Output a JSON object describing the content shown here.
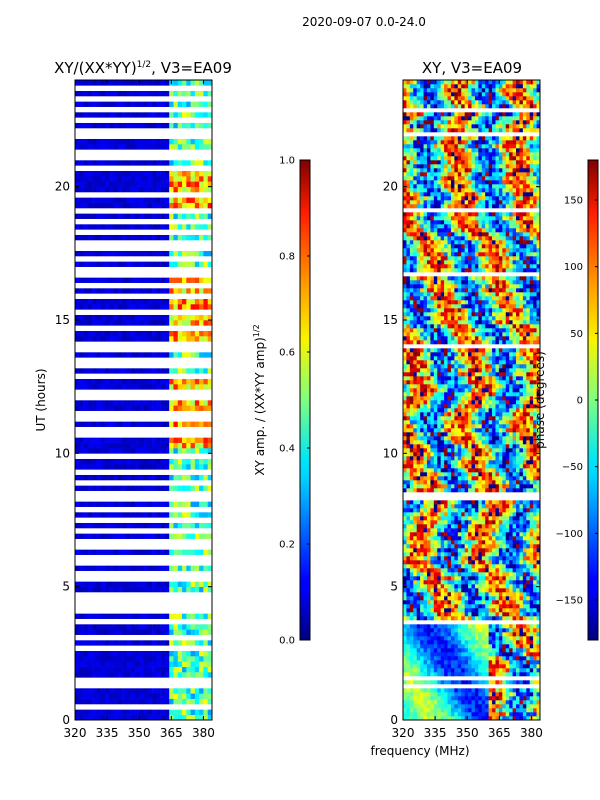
{
  "figure": {
    "suptitle": "2020-09-07 0.0-24.0",
    "shared_xlabel": "frequency (MHz)"
  },
  "chart_data": [
    {
      "type": "heatmap",
      "title_main": "XY/(XX*YY)",
      "title_sup": "1/2",
      "title_tail": ", V3=EA09",
      "xlabel": "",
      "ylabel": "UT (hours)",
      "xlim": [
        320,
        384
      ],
      "ylim": [
        0,
        24
      ],
      "xticks": [
        320,
        335,
        350,
        365,
        380
      ],
      "yticks": [
        0,
        5,
        10,
        15,
        20
      ],
      "colorbar": {
        "label_main": "XY amp. / (XX*YY amp)",
        "label_sup": "1/2",
        "range": [
          0.0,
          1.0
        ],
        "ticks": [
          "0.0",
          "0.2",
          "0.4",
          "0.6",
          "0.8",
          "1.0"
        ],
        "tick_values": [
          0.0,
          0.2,
          0.4,
          0.6,
          0.8,
          1.0
        ],
        "colormap": "jet"
      },
      "background_value": 0.05,
      "bright_band_mhz": [
        364,
        384
      ],
      "bright_band_level": 0.45,
      "gap_rows_ut": [
        0.5,
        1.2,
        1.5,
        2.6,
        3.0,
        3.6,
        3.7,
        4.1,
        4.3,
        4.6,
        5.2,
        5.4,
        5.8,
        6.1,
        6.6,
        7.1,
        7.5,
        7.8,
        8.3,
        8.4,
        8.5,
        8.9,
        9.3,
        9.8,
        10.6,
        10.9,
        11.3,
        11.5,
        12.0,
        12.3,
        12.8,
        13.2,
        13.5,
        13.9,
        14.0,
        14.6,
        15.2,
        15.8,
        16.3,
        16.7,
        16.9,
        17.2,
        17.6,
        17.9,
        18.2,
        18.6,
        19.1,
        19.7,
        20.6,
        21.1,
        21.3,
        21.9,
        22.1,
        22.4,
        22.8,
        22.9,
        23.2,
        23.6
      ]
    },
    {
      "type": "heatmap",
      "title": "XY, V3=EA09",
      "xlabel": "frequency (MHz)",
      "ylabel": "",
      "xlim": [
        320,
        384
      ],
      "ylim": [
        0,
        24
      ],
      "xticks": [
        320,
        335,
        350,
        365,
        380
      ],
      "yticks": [
        0,
        5,
        10,
        15,
        20
      ],
      "colorbar": {
        "label": "phase (degrees)",
        "range": [
          -180,
          180
        ],
        "ticks": [
          "150",
          "100",
          "50",
          "0",
          "−50",
          "−100",
          "−150"
        ],
        "tick_values": [
          150,
          100,
          50,
          0,
          -50,
          -100,
          -150
        ],
        "colormap": "jet"
      },
      "gap_rows_ut": [
        1.2,
        1.5,
        3.6,
        3.7,
        8.3,
        8.4,
        8.5,
        14.0,
        16.7,
        19.1,
        21.9,
        22.8,
        22.9
      ]
    }
  ]
}
